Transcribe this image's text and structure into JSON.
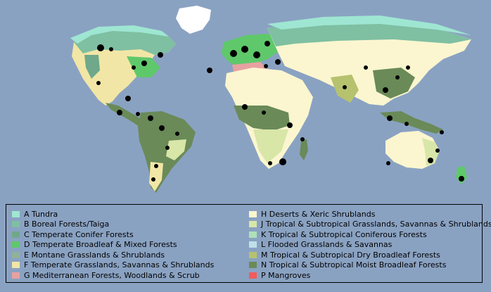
{
  "legend": {
    "left": [
      {
        "label": "A Tundra",
        "color": "#9ee6d2"
      },
      {
        "label": "B Boreal Forests/Taiga",
        "color": "#7fbfa2"
      },
      {
        "label": "C Temperate Conifer Forests",
        "color": "#6fa88a"
      },
      {
        "label": "D Temperate Broadleaf & Mixed Forests",
        "color": "#5fc86a"
      },
      {
        "label": "E Montane Grasslands & Shrublands",
        "color": "#8fb29a"
      },
      {
        "label": "F Temperate Grasslands, Savannas & Shrublands",
        "color": "#f2e6a6"
      },
      {
        "label": "G Mediterranean Forests, Woodlands & Scrub",
        "color": "#e8a1a1"
      }
    ],
    "right": [
      {
        "label": "H Deserts & Xeric Shrublands",
        "color": "#fbf6cf"
      },
      {
        "label": "J Tropical & Subtropical Grasslands, Savannas & Shrublands",
        "color": "#d8e6a8"
      },
      {
        "label": "K Tropical & Subtropical Coniferous Forests",
        "color": "#aee0b9"
      },
      {
        "label": "L Flooded Grasslands & Savannas",
        "color": "#bfe0e8"
      },
      {
        "label": "M Tropical & Subtropical Dry Broadleaf Forests",
        "color": "#b6c26e"
      },
      {
        "label": "N Tropical & Subtropical Moist Broadleaf Forests",
        "color": "#6a8a58"
      },
      {
        "label": "P Mangroves",
        "color": "#f25c5c"
      }
    ]
  },
  "colors": {
    "ocean": "#8aa2c2",
    "tundra": "#9ee6d2",
    "boreal": "#7fbfa2",
    "conifer": "#6fa88a",
    "broadleaf": "#5fc86a",
    "montane": "#8fb29a",
    "temperate_grass": "#f2e6a6",
    "mediterranean": "#e8a1a1",
    "desert": "#fbf6cf",
    "trop_grass": "#d8e6a8",
    "trop_dry": "#b6c26e",
    "trop_moist": "#6a8a58",
    "ice": "#ffffff",
    "points": "#000000"
  }
}
